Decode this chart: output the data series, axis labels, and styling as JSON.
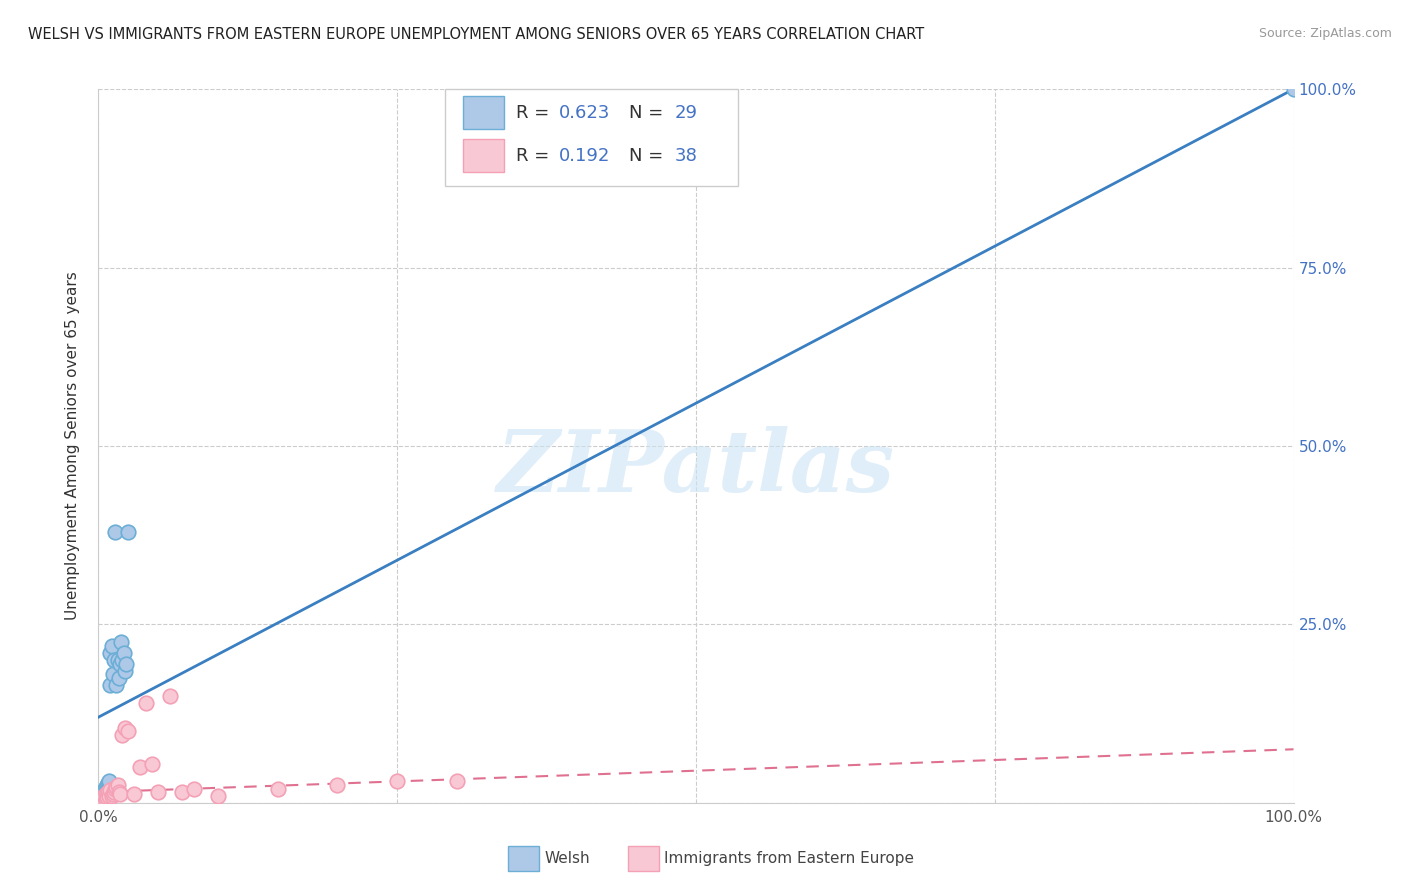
{
  "title": "WELSH VS IMMIGRANTS FROM EASTERN EUROPE UNEMPLOYMENT AMONG SENIORS OVER 65 YEARS CORRELATION CHART",
  "source": "Source: ZipAtlas.com",
  "ylabel": "Unemployment Among Seniors over 65 years",
  "watermark": "ZIPatlas",
  "xlim": [
    0,
    1
  ],
  "ylim": [
    0,
    1
  ],
  "welsh_color": "#6baed6",
  "welsh_face": "#aec8e8",
  "immigrants_color": "#f4a0b5",
  "immigrants_face": "#f9c8d5",
  "line1_color": "#3a7fc1",
  "line2_color": "#e07090",
  "line2_color_dash": "#e07090",
  "bg_color": "#ffffff",
  "grid_color": "#cccccc",
  "right_tick_color": "#4472c4",
  "welsh_x": [
    0.003,
    0.004,
    0.005,
    0.005,
    0.006,
    0.006,
    0.007,
    0.007,
    0.008,
    0.008,
    0.009,
    0.009,
    0.01,
    0.01,
    0.011,
    0.012,
    0.013,
    0.014,
    0.015,
    0.016,
    0.017,
    0.018,
    0.019,
    0.02,
    0.021,
    0.022,
    0.023,
    0.025,
    1.0
  ],
  "welsh_y": [
    0.01,
    0.012,
    0.015,
    0.018,
    0.02,
    0.022,
    0.018,
    0.025,
    0.022,
    0.028,
    0.025,
    0.03,
    0.165,
    0.21,
    0.22,
    0.18,
    0.2,
    0.38,
    0.165,
    0.2,
    0.175,
    0.195,
    0.225,
    0.2,
    0.21,
    0.185,
    0.195,
    0.38,
    1.0
  ],
  "immigrants_x": [
    0.001,
    0.002,
    0.003,
    0.003,
    0.004,
    0.004,
    0.005,
    0.005,
    0.006,
    0.006,
    0.007,
    0.008,
    0.009,
    0.01,
    0.011,
    0.012,
    0.013,
    0.014,
    0.015,
    0.016,
    0.017,
    0.018,
    0.02,
    0.022,
    0.025,
    0.03,
    0.035,
    0.04,
    0.045,
    0.05,
    0.06,
    0.07,
    0.08,
    0.1,
    0.15,
    0.2,
    0.25,
    0.3
  ],
  "immigrants_y": [
    0.0,
    0.0,
    0.002,
    0.005,
    0.0,
    0.008,
    0.003,
    0.01,
    0.005,
    0.012,
    0.008,
    0.015,
    0.01,
    0.018,
    0.01,
    0.012,
    0.015,
    0.02,
    0.022,
    0.025,
    0.015,
    0.012,
    0.095,
    0.105,
    0.1,
    0.012,
    0.05,
    0.14,
    0.055,
    0.015,
    0.15,
    0.015,
    0.02,
    0.01,
    0.02,
    0.025,
    0.03,
    0.03
  ],
  "welsh_line_x0": 0.0,
  "welsh_line_y0": 0.12,
  "welsh_line_x1": 1.0,
  "welsh_line_y1": 1.0,
  "imm_line_x0": 0.0,
  "imm_line_y0": 0.015,
  "imm_line_x1": 1.0,
  "imm_line_y1": 0.075
}
